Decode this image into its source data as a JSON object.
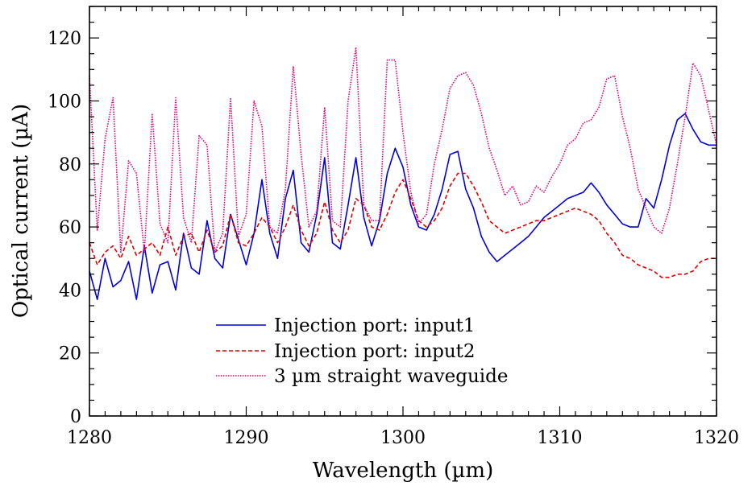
{
  "chart_data": {
    "type": "line",
    "title": "",
    "xlabel": "Wavelength (µm)",
    "ylabel": "Optical current (µA)",
    "xlim": [
      1280,
      1320
    ],
    "ylim": [
      0,
      130
    ],
    "xticks": [
      1280,
      1290,
      1300,
      1310,
      1320
    ],
    "yticks": [
      0,
      20,
      40,
      60,
      80,
      100,
      120
    ],
    "legend_position": "bottom-center",
    "grid": false,
    "series": [
      {
        "name": "Injection port: input1",
        "color": "#0000e0",
        "dash": "solid",
        "x": [
          1280,
          1280.5,
          1281,
          1281.5,
          1282,
          1282.5,
          1283,
          1283.5,
          1284,
          1284.5,
          1285,
          1285.5,
          1286,
          1286.5,
          1287,
          1287.5,
          1288,
          1288.5,
          1289,
          1289.5,
          1290,
          1290.5,
          1291,
          1291.5,
          1292,
          1292.5,
          1293,
          1293.5,
          1294,
          1294.5,
          1295,
          1295.5,
          1296,
          1296.5,
          1297,
          1297.5,
          1298,
          1298.5,
          1299,
          1299.5,
          1300,
          1300.5,
          1301,
          1301.5,
          1302,
          1302.5,
          1303,
          1303.5,
          1304,
          1304.5,
          1305,
          1305.5,
          1306,
          1306.5,
          1307,
          1307.5,
          1308,
          1308.5,
          1309,
          1309.5,
          1310,
          1310.5,
          1311,
          1311.5,
          1312,
          1312.5,
          1313,
          1313.5,
          1314,
          1314.5,
          1315,
          1315.5,
          1316,
          1316.5,
          1317,
          1317.5,
          1318,
          1318.5,
          1319,
          1319.5,
          1320
        ],
        "values": [
          46,
          37,
          50,
          41,
          43,
          49,
          37,
          54,
          39,
          48,
          49,
          40,
          58,
          47,
          45,
          62,
          50,
          47,
          64,
          56,
          48,
          58,
          75,
          58,
          50,
          69,
          78,
          55,
          52,
          64,
          82,
          55,
          53,
          67,
          82,
          63,
          54,
          62,
          77,
          85,
          79,
          67,
          60,
          59,
          64,
          72,
          83,
          84,
          72,
          66,
          57,
          52,
          49,
          51,
          53,
          55,
          57,
          60,
          63,
          65,
          67,
          69,
          70,
          71,
          74,
          71,
          67,
          64,
          61,
          60,
          60,
          69,
          66,
          75,
          86,
          94,
          96,
          91,
          87,
          86,
          86
        ]
      },
      {
        "name": "Injection port: input2",
        "color": "#e00000",
        "dash": "dashed",
        "x": [
          1280,
          1280.5,
          1281,
          1281.5,
          1282,
          1282.5,
          1283,
          1283.5,
          1284,
          1284.5,
          1285,
          1285.5,
          1286,
          1286.5,
          1287,
          1287.5,
          1288,
          1288.5,
          1289,
          1289.5,
          1290,
          1290.5,
          1291,
          1291.5,
          1292,
          1292.5,
          1293,
          1293.5,
          1294,
          1294.5,
          1295,
          1295.5,
          1296,
          1296.5,
          1297,
          1297.5,
          1298,
          1298.5,
          1299,
          1299.5,
          1300,
          1300.5,
          1301,
          1301.5,
          1302,
          1302.5,
          1303,
          1303.5,
          1304,
          1304.5,
          1305,
          1305.5,
          1306,
          1306.5,
          1307,
          1307.5,
          1308,
          1308.5,
          1309,
          1309.5,
          1310,
          1310.5,
          1311,
          1311.5,
          1312,
          1312.5,
          1313,
          1313.5,
          1314,
          1314.5,
          1315,
          1315.5,
          1316,
          1316.5,
          1317,
          1317.5,
          1318,
          1318.5,
          1319,
          1319.5,
          1320
        ],
        "values": [
          55,
          48,
          52,
          54,
          50,
          57,
          51,
          53,
          55,
          51,
          60,
          51,
          57,
          58,
          52,
          59,
          52,
          54,
          64,
          55,
          54,
          58,
          63,
          60,
          55,
          60,
          67,
          59,
          54,
          58,
          68,
          59,
          55,
          59,
          69,
          67,
          60,
          59,
          64,
          71,
          75,
          69,
          62,
          60,
          62,
          66,
          73,
          77,
          77,
          73,
          68,
          62,
          60,
          58,
          59,
          60,
          61,
          62,
          62,
          63,
          64,
          65,
          66,
          65,
          64,
          62,
          58,
          55,
          51,
          50,
          48,
          47,
          46,
          44,
          44,
          45,
          45,
          46,
          49,
          50,
          50
        ]
      },
      {
        "name": "3 µm straight waveguide",
        "color": "#e0007a",
        "dash": "dotted",
        "x": [
          1280,
          1280.5,
          1281,
          1281.5,
          1282,
          1282.5,
          1283,
          1283.5,
          1284,
          1284.5,
          1285,
          1285.5,
          1286,
          1286.5,
          1287,
          1287.5,
          1288,
          1288.5,
          1289,
          1289.5,
          1290,
          1290.5,
          1291,
          1291.5,
          1292,
          1292.5,
          1293,
          1293.5,
          1294,
          1294.5,
          1295,
          1295.5,
          1296,
          1296.5,
          1297,
          1297.5,
          1298,
          1298.5,
          1299,
          1299.5,
          1300,
          1300.5,
          1301,
          1301.5,
          1302,
          1302.5,
          1303,
          1303.5,
          1304,
          1304.5,
          1305,
          1305.5,
          1306,
          1306.5,
          1307,
          1307.5,
          1308,
          1308.5,
          1309,
          1309.5,
          1310,
          1310.5,
          1311,
          1311.5,
          1312,
          1312.5,
          1313,
          1313.5,
          1314,
          1314.5,
          1315,
          1315.5,
          1316,
          1316.5,
          1317,
          1317.5,
          1318,
          1318.5,
          1319,
          1319.5,
          1320
        ],
        "values": [
          108,
          59,
          88,
          101,
          52,
          81,
          77,
          52,
          96,
          61,
          55,
          101,
          63,
          55,
          89,
          86,
          52,
          58,
          101,
          57,
          64,
          100,
          92,
          60,
          58,
          72,
          111,
          83,
          60,
          65,
          98,
          62,
          60,
          100,
          117,
          67,
          62,
          62,
          113,
          113,
          90,
          71,
          61,
          64,
          80,
          91,
          104,
          108,
          109,
          105,
          96,
          85,
          78,
          70,
          73,
          67,
          68,
          73,
          71,
          76,
          80,
          86,
          88,
          93,
          94,
          98,
          107,
          108,
          95,
          85,
          72,
          66,
          60,
          58,
          66,
          80,
          95,
          112,
          108,
          97,
          86
        ]
      }
    ]
  }
}
